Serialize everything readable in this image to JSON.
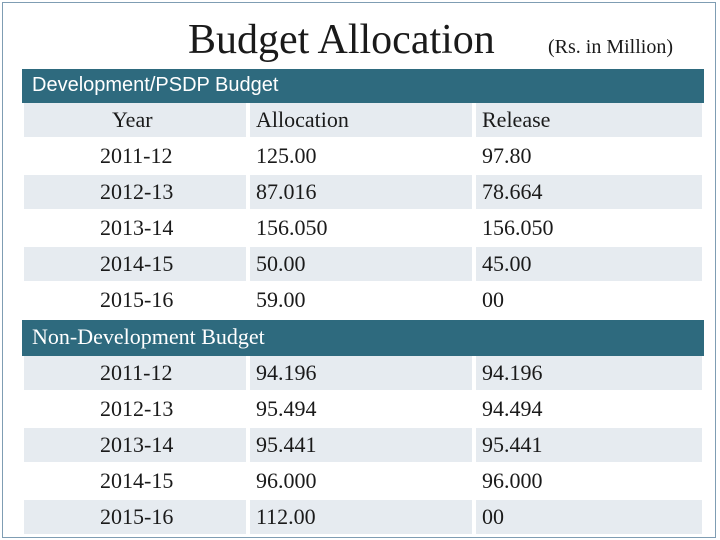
{
  "title": "Budget Allocation",
  "unit": "(Rs. in Million)",
  "development": {
    "heading": "Development/PSDP Budget",
    "columns": [
      "Year",
      "Allocation",
      "Release"
    ],
    "rows": [
      [
        "2011-12",
        "125.00",
        "97.80"
      ],
      [
        "2012-13",
        "87.016",
        "78.664"
      ],
      [
        "2013-14",
        "156.050",
        "156.050"
      ],
      [
        "2014-15",
        "50.00",
        "45.00"
      ],
      [
        "2015-16",
        "59.00",
        "00"
      ]
    ]
  },
  "non_development": {
    "heading": "Non-Development Budget",
    "rows": [
      [
        "2011-12",
        "94.196",
        "94.196"
      ],
      [
        "2012-13",
        "95.494",
        "94.494"
      ],
      [
        "2013-14",
        "95.441",
        "95.441"
      ],
      [
        "2014-15",
        "96.000",
        "96.000"
      ],
      [
        "2015-16",
        "112.00",
        "00"
      ]
    ]
  }
}
